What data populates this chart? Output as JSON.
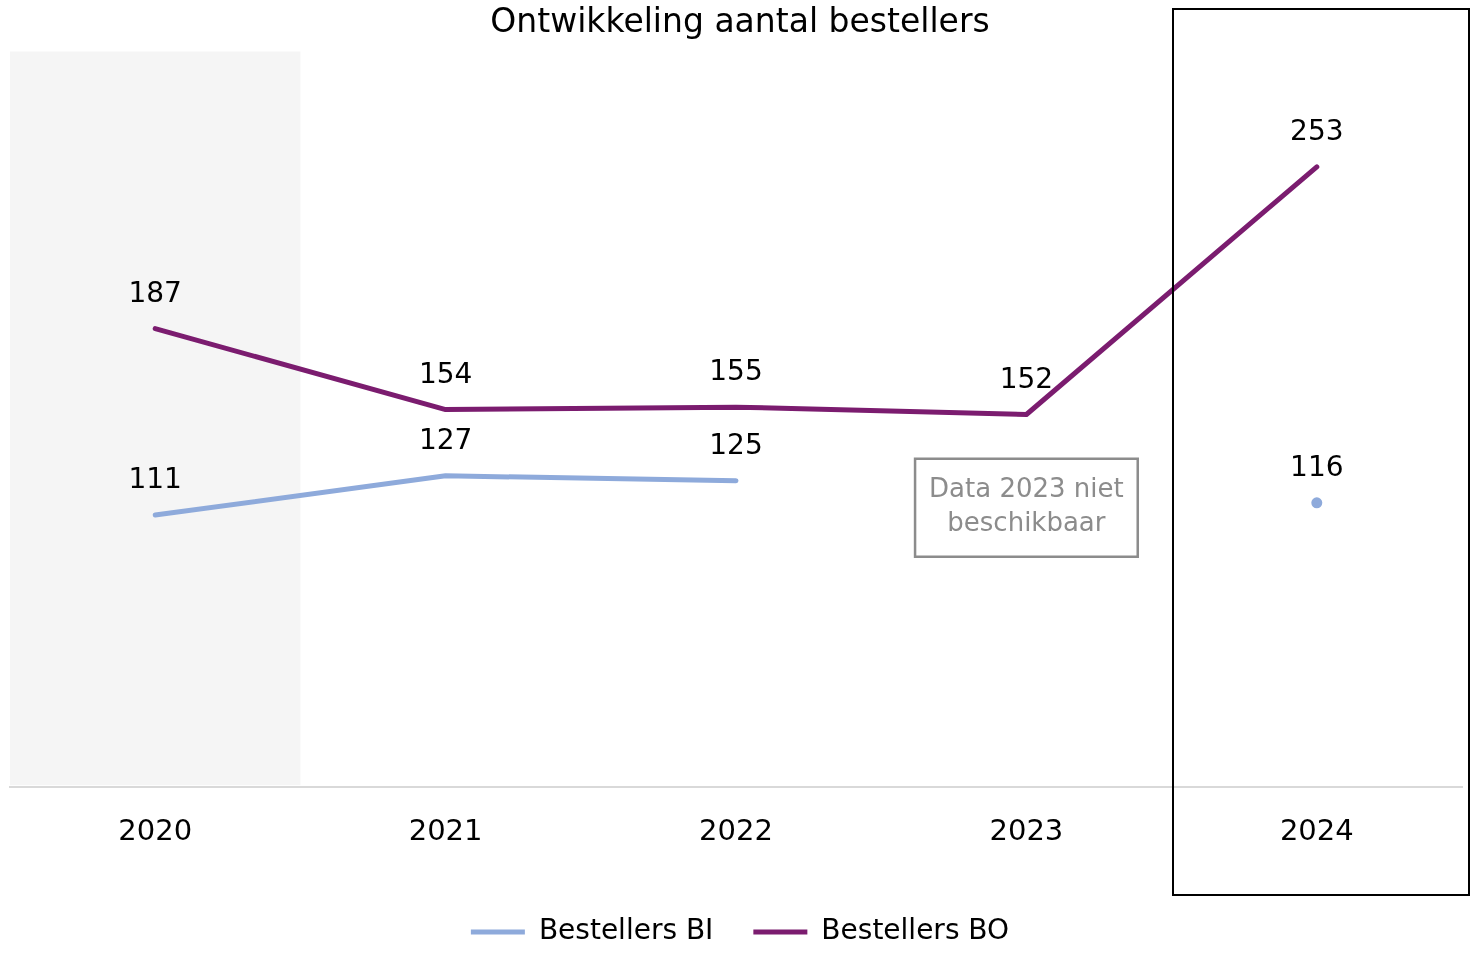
{
  "chart_data": {
    "type": "line",
    "title": "Ontwikkeling aantal bestellers",
    "categories": [
      "2020",
      "2021",
      "2022",
      "2023",
      "2024"
    ],
    "series": [
      {
        "name": "Bestellers BI",
        "color": "#8eaadb",
        "values": [
          111,
          127,
          125,
          null,
          116
        ]
      },
      {
        "name": "Bestellers BO",
        "color": "#7b1c6f",
        "values": [
          187,
          154,
          155,
          152,
          253
        ]
      }
    ],
    "data_labels": true,
    "grid": false,
    "legend": "bottom",
    "marker": "none",
    "line_style": "solid",
    "tick_labels": "x",
    "bands": [
      {
        "axis": "x",
        "from": "2020",
        "to": "2020",
        "color": "#f5f5f5"
      }
    ],
    "annotations": [
      "Data 2023 niet beschikbaar"
    ]
  }
}
